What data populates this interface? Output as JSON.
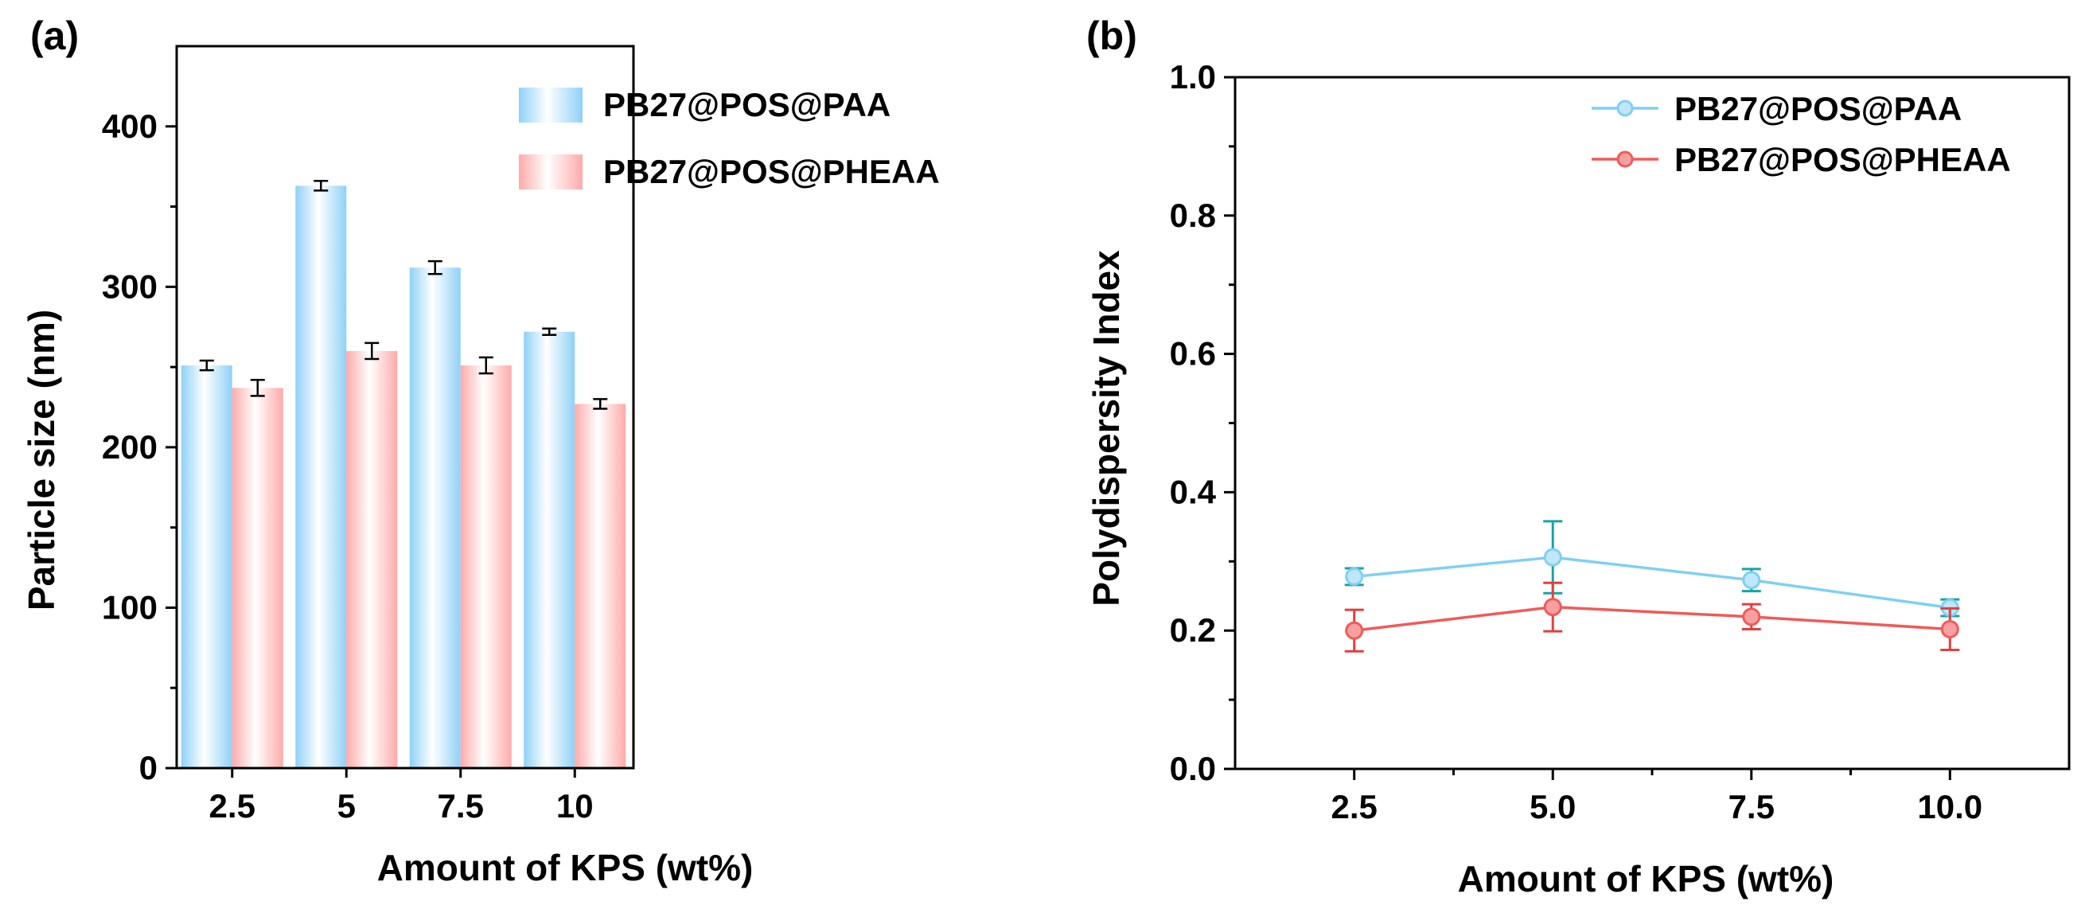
{
  "chart_data": [
    {
      "panel_label": "(a)",
      "type": "bar",
      "title": "",
      "xlabel": "Amount of KPS (wt%)",
      "ylabel": "Particle size (nm)",
      "categories": [
        "2.5",
        "5",
        "7.5",
        "10"
      ],
      "ylim": [
        0,
        450
      ],
      "yticks": [
        0,
        100,
        200,
        300,
        400
      ],
      "ytick_labels": [
        "0",
        "100",
        "200",
        "300",
        "400"
      ],
      "grid": false,
      "legend_position": "top-right",
      "series": [
        {
          "name": "PB27@POS@PAA",
          "color": "#9fd8f7",
          "values": [
            251,
            363,
            312,
            272
          ],
          "errors": [
            3,
            3,
            4,
            2
          ]
        },
        {
          "name": "PB27@POS@PHEAA",
          "color": "#ffb9b9",
          "values": [
            237,
            260,
            251,
            227
          ],
          "errors": [
            5,
            5,
            5,
            3
          ]
        }
      ]
    },
    {
      "panel_label": "(b)",
      "type": "line",
      "title": "",
      "xlabel": "Amount of KPS (wt%)",
      "ylabel": "Polydispersity Index",
      "x": [
        2.5,
        5.0,
        7.5,
        10.0
      ],
      "xtick_labels": [
        "2.5",
        "5.0",
        "7.5",
        "10.0"
      ],
      "xlim": [
        1.0,
        11.5
      ],
      "ylim": [
        0.0,
        1.0
      ],
      "yticks": [
        0.0,
        0.2,
        0.4,
        0.6,
        0.8,
        1.0
      ],
      "ytick_labels": [
        "0.0",
        "0.2",
        "0.4",
        "0.6",
        "0.8",
        "1.0"
      ],
      "grid": false,
      "legend_position": "top-right",
      "series": [
        {
          "name": "PB27@POS@PAA",
          "color": "#7fd0f2",
          "errcolor": "#1aa3a3",
          "values": [
            0.278,
            0.306,
            0.273,
            0.233
          ],
          "errors": [
            0.012,
            0.052,
            0.016,
            0.012
          ]
        },
        {
          "name": "PB27@POS@PHEAA",
          "color": "#f05a5a",
          "errcolor": "#e04040",
          "values": [
            0.2,
            0.234,
            0.22,
            0.202
          ],
          "errors": [
            0.03,
            0.035,
            0.018,
            0.03
          ]
        }
      ]
    }
  ]
}
